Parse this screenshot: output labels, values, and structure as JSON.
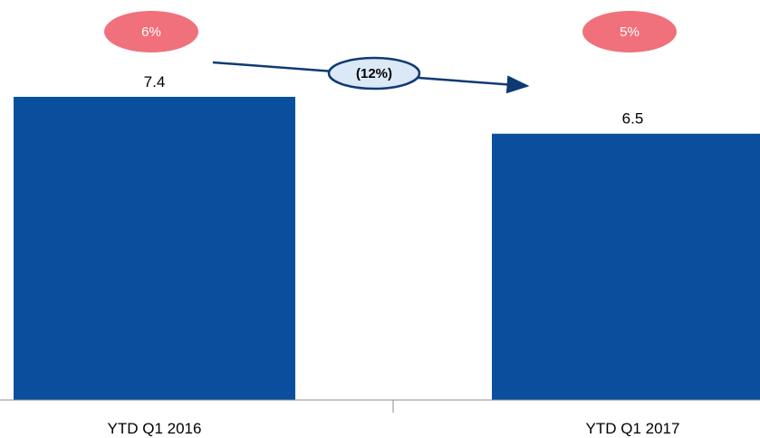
{
  "chart_data": {
    "type": "bar",
    "categories": [
      "YTD Q1 2016",
      "YTD Q1 2017"
    ],
    "values": [
      7.4,
      6.5
    ],
    "value_labels": [
      "7.4",
      "6.5"
    ],
    "badges": [
      "6%",
      "5%"
    ],
    "change_label": "(12%)",
    "title": "",
    "xlabel": "",
    "ylabel": "",
    "ylim": [
      0,
      7.4
    ],
    "grid": false,
    "colors": {
      "bar": "#0a4f9e",
      "badge": "#f0717b",
      "arrow": "#0e3a73",
      "change_fill": "#dbe8f6",
      "axis": "#8c8c8c"
    }
  }
}
